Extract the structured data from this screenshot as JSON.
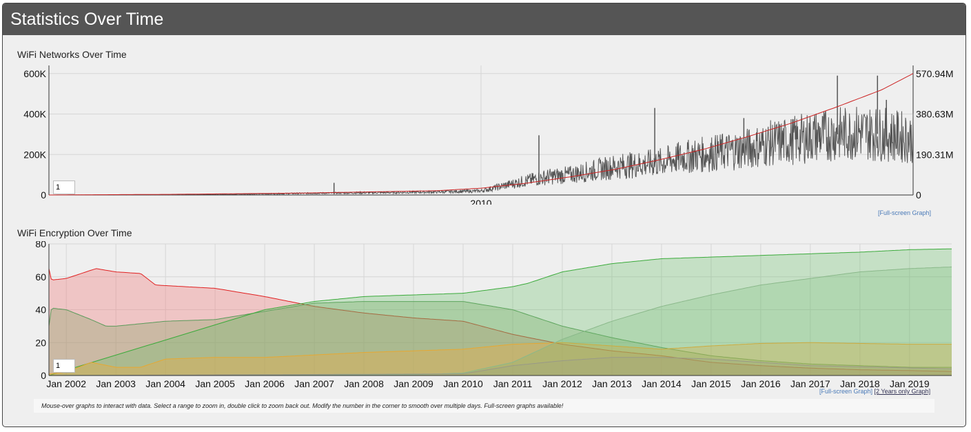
{
  "header": {
    "title": "Statistics Over Time"
  },
  "chart_data": [
    {
      "type": "line",
      "title": "WiFi Networks Over Time",
      "xlabel": "",
      "ylabel": "",
      "y_ticks": [
        "600K",
        "400K",
        "200K",
        "0"
      ],
      "y2_ticks": [
        "570.94M",
        "380.63M",
        "190.31M",
        "0"
      ],
      "x_ticks": [
        "2010"
      ],
      "ylim": [
        0,
        640000
      ],
      "y2lim": [
        0,
        609000000
      ],
      "xlim": [
        2000.3,
        2019.7
      ],
      "grid": true,
      "smoothing": "1",
      "series": [
        {
          "color": "#555555",
          "axis": "left",
          "x": [
            2000.5,
            2002,
            2003,
            2004,
            2005,
            2006,
            2007,
            2008,
            2009,
            2010,
            2010.5,
            2011,
            2011.5,
            2012,
            2012.5,
            2013,
            2013.5,
            2014,
            2014.5,
            2015,
            2015.5,
            2016,
            2016.5,
            2017,
            2017.5,
            2018,
            2018.5,
            2019,
            2019.7
          ],
          "values": [
            0,
            500,
            1500,
            3000,
            5000,
            8000,
            10000,
            12000,
            15000,
            20000,
            45000,
            70000,
            90000,
            100000,
            120000,
            140000,
            150000,
            160000,
            185000,
            200000,
            215000,
            230000,
            255000,
            270000,
            290000,
            300000,
            310000,
            300000,
            280000
          ],
          "spikes": [
            {
              "x": 2006.7,
              "y": 60000
            },
            {
              "x": 2011.3,
              "y": 295000
            },
            {
              "x": 2013.9,
              "y": 430000
            },
            {
              "x": 2015.9,
              "y": 380000
            },
            {
              "x": 2018.0,
              "y": 590000
            },
            {
              "x": 2018.9,
              "y": 590000
            },
            {
              "x": 2019.1,
              "y": 470000
            }
          ]
        },
        {
          "color": "#cc2222",
          "axis": "right",
          "x": [
            2000.3,
            2003,
            2006,
            2009,
            2010,
            2011,
            2012,
            2013,
            2014,
            2015,
            2016,
            2017,
            2018,
            2019,
            2019.7
          ],
          "values": [
            0,
            3000000,
            9000000,
            20000000,
            32000000,
            55000000,
            85000000,
            120000000,
            165000000,
            215000000,
            275000000,
            340000000,
            415000000,
            495000000,
            570940000
          ]
        }
      ]
    },
    {
      "type": "area",
      "title": "WiFi Encryption Over Time",
      "xlabel": "",
      "ylabel": "",
      "y_ticks": [
        "80",
        "60",
        "40",
        "20",
        "0"
      ],
      "ylim": [
        0,
        80
      ],
      "x_ticks": [
        "Jan 2002",
        "Jan 2003",
        "Jan 2004",
        "Jan 2005",
        "Jan 2006",
        "Jan 2007",
        "Jan 2008",
        "Jan 2009",
        "Jan 2010",
        "Jan 2011",
        "Jan 2012",
        "Jan 2013",
        "Jan 2014",
        "Jan 2015",
        "Jan 2016",
        "Jan 2017",
        "Jan 2018",
        "Jan 2019"
      ],
      "xlim": [
        2001.65,
        2019.85
      ],
      "grid": true,
      "smoothing": "1",
      "series": [
        {
          "color": "#e02020",
          "x": [
            2001.65,
            2001.7,
            2002,
            2002.4,
            2002.6,
            2003,
            2003.5,
            2003.8,
            2005,
            2006,
            2007,
            2008,
            2009,
            2010,
            2011,
            2012,
            2013,
            2014,
            2015,
            2016,
            2017,
            2018,
            2019,
            2019.85
          ],
          "values": [
            65,
            58,
            59,
            63,
            65,
            63,
            62,
            55,
            53,
            48,
            42,
            38,
            35,
            33,
            25,
            19,
            15,
            12,
            8,
            6,
            4.5,
            3.5,
            3,
            2.5
          ]
        },
        {
          "color": "#5a9a5a",
          "x": [
            2001.65,
            2001.7,
            2002,
            2002.5,
            2002.8,
            2003,
            2004,
            2005,
            2006,
            2007,
            2008,
            2009,
            2010,
            2011,
            2012,
            2013,
            2014,
            2015,
            2016,
            2017,
            2018,
            2019,
            2019.85
          ],
          "values": [
            30,
            41,
            40,
            34,
            30,
            30,
            33,
            34,
            39,
            44,
            45,
            45,
            45,
            40,
            30,
            23,
            17,
            12,
            9,
            7,
            6,
            5,
            5
          ]
        },
        {
          "color": "#3aaa3a",
          "x": [
            2001.65,
            2006,
            2007,
            2008,
            2009,
            2010,
            2011,
            2011.3,
            2012,
            2013,
            2014,
            2015,
            2016,
            2017,
            2018,
            2019,
            2019.85
          ],
          "values": [
            0,
            40,
            45,
            48,
            49,
            50,
            54,
            56,
            63,
            68,
            71,
            72,
            73,
            74,
            75,
            76.5,
            77
          ]
        },
        {
          "color": "#e8a830",
          "x": [
            2001.65,
            2002,
            2002.5,
            2003,
            2003.5,
            2004,
            2005,
            2006,
            2007,
            2008,
            2009,
            2010,
            2011,
            2012,
            2013,
            2014,
            2015,
            2016,
            2017,
            2018,
            2019,
            2019.85
          ],
          "values": [
            1,
            2,
            8,
            5,
            5,
            10,
            11,
            11,
            12.5,
            14,
            15,
            16,
            19,
            20,
            18,
            16,
            18,
            19.5,
            20,
            19.5,
            19,
            19
          ]
        },
        {
          "color": "#8ab88a",
          "x": [
            2001.65,
            2009,
            2010,
            2011,
            2012,
            2013,
            2014,
            2015,
            2016,
            2017,
            2018,
            2019,
            2019.85
          ],
          "values": [
            0,
            0.5,
            1.5,
            8,
            22,
            33,
            42,
            49,
            55,
            59,
            63,
            65,
            66
          ]
        },
        {
          "color": "#999988",
          "x": [
            2001.65,
            2010,
            2011,
            2012,
            2013,
            2014,
            2015,
            2016,
            2017,
            2019.85
          ],
          "values": [
            0,
            1,
            6,
            9,
            11,
            11,
            10,
            8,
            6,
            4
          ]
        }
      ]
    }
  ],
  "links": {
    "fullscreen": "[Full-screen Graph]",
    "two_years": "[2 Years only Graph]"
  },
  "note": "Mouse-over graphs to interact with data. Select a range to zoom in, double click to zoom back out. Modify the number in the corner to smooth over multiple days. Full-screen graphs available!"
}
